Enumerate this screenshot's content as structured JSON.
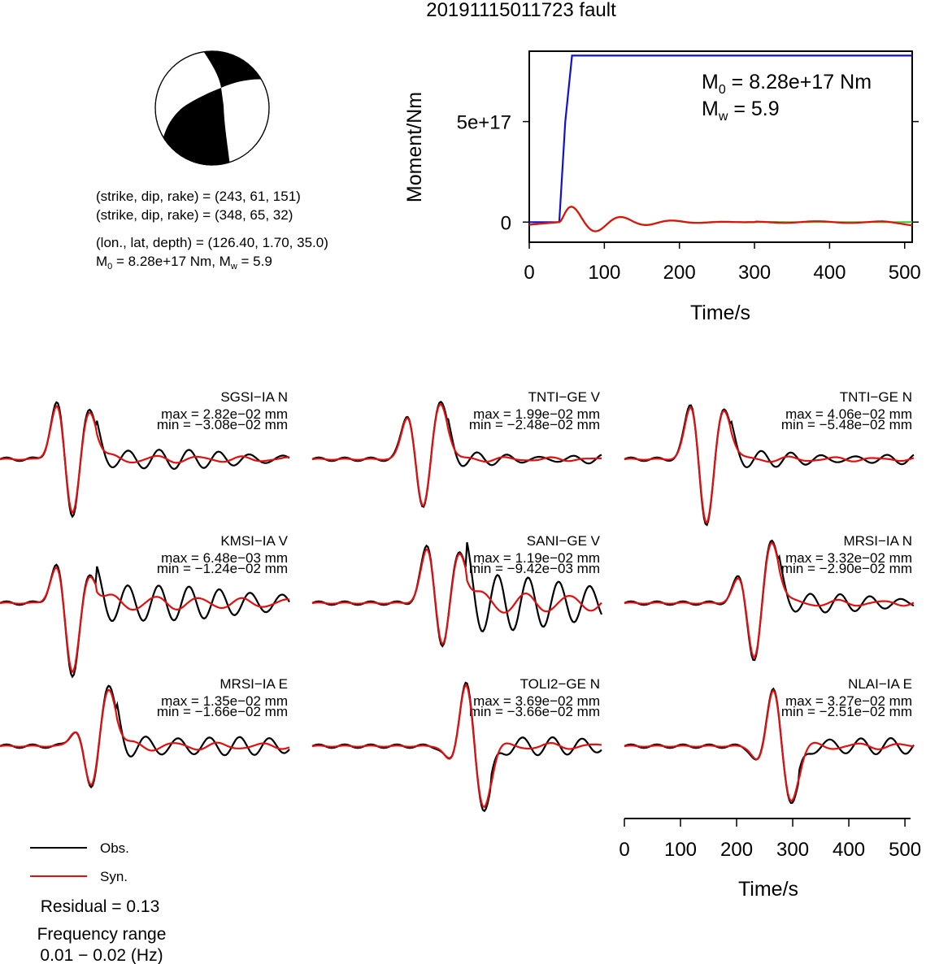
{
  "title": "20191115011723 fault",
  "colors": {
    "obs": "#000000",
    "syn": "#e01010",
    "moment": "#1010d0",
    "green": "#30d030"
  },
  "mechanism": {
    "plane1_label": "(strike, dip, rake) = (243, 61, 151)",
    "plane2_label": "(strike, dip, rake) = (348, 65, 32)",
    "location_label": "(lon., lat, depth) = (126.40, 1.70, 35.0)",
    "moment_label_a": "M",
    "moment_label_sub": "0",
    "moment_label_b": " = 8.28e+17 Nm, M",
    "moment_label_sub2": "w",
    "moment_label_c": " = 5.9"
  },
  "moment_panel": {
    "m0_prefix": "M",
    "m0_sub": "0",
    "m0_text": " = 8.28e+17 Nm",
    "mw_prefix": "M",
    "mw_sub": "w",
    "mw_text": " = 5.9"
  },
  "legend": {
    "obs": "Obs.",
    "syn": "Syn."
  },
  "residual": "Residual = 0.13",
  "freq_label": "Frequency range",
  "freq_value": "0.01 − 0.02 (Hz)",
  "chart_data": [
    {
      "type": "line",
      "xlabel": "Time/s",
      "ylabel": "Moment/Nm",
      "xlim": [
        0,
        510
      ],
      "ylim": [
        -1e+17,
        8.5e+17
      ],
      "xticks": [
        "0",
        "100",
        "200",
        "300",
        "400",
        "500"
      ],
      "yticks": [
        {
          "value": 0,
          "label": "0"
        },
        {
          "value": 5e+17,
          "label": "5e+17"
        }
      ],
      "series": [
        {
          "color": "moment",
          "kind": "cumulative",
          "x": [
            0,
            40,
            48,
            57,
            510
          ],
          "y": [
            0,
            0,
            5e+17,
            8.28e+17,
            8.28e+17
          ]
        },
        {
          "color": "green",
          "kind": "wavelet",
          "x": [
            0,
            510
          ]
        },
        {
          "color": "syn",
          "kind": "wavelet",
          "x": [
            0,
            510
          ]
        }
      ]
    },
    {
      "type": "line",
      "panels": [
        {
          "station": "SGSI−IA N",
          "max": "max = 2.82e−02 mm",
          "min": "min = −3.08e−02 mm"
        },
        {
          "station": "TNTI−GE V",
          "max": "max = 1.99e−02 mm",
          "min": "min = −2.48e−02 mm"
        },
        {
          "station": "TNTI−GE N",
          "max": "max = 4.06e−02 mm",
          "min": "min = −5.48e−02 mm"
        },
        {
          "station": "KMSI−IA V",
          "max": "max = 6.48e−03 mm",
          "min": "min = −1.24e−02 mm"
        },
        {
          "station": "SANI−GE V",
          "max": "max = 1.19e−02 mm",
          "min": "min = −9.42e−03 mm"
        },
        {
          "station": "MRSI−IA N",
          "max": "max = 3.32e−02 mm",
          "min": "min = −2.90e−02 mm"
        },
        {
          "station": "MRSI−IA E",
          "max": "max = 1.35e−02 mm",
          "min": "min = −1.66e−02 mm"
        },
        {
          "station": "TOLI2−GE N",
          "max": "max = 3.69e−02 mm",
          "min": "min = −3.66e−02 mm"
        },
        {
          "station": "NLAI−IA E",
          "max": "max = 3.27e−02 mm",
          "min": "min = −2.51e−02 mm"
        }
      ],
      "xlabel": "Time/s",
      "xlim": [
        0,
        510
      ],
      "xticks": [
        "0",
        "100",
        "200",
        "300",
        "400",
        "500"
      ]
    }
  ]
}
